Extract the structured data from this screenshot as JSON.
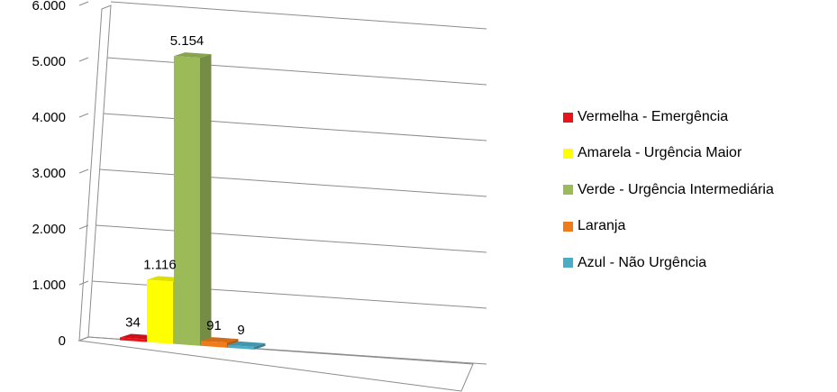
{
  "chart_data": {
    "type": "bar",
    "categories": [
      "Vermelha - Emergência",
      "Amarela - Urgência Maior",
      "Verde - Urgência Intermediária",
      "Laranja",
      "Azul - Não Urgência"
    ],
    "values": [
      34,
      1116,
      5154,
      91,
      9
    ],
    "data_labels": [
      "34",
      "1.116",
      "5.154",
      "91",
      "9"
    ],
    "colors": [
      "#e8141b",
      "#ffff00",
      "#9bbb59",
      "#f07b1a",
      "#4bacc6"
    ],
    "yticks": [
      "0",
      "1.000",
      "2.000",
      "3.000",
      "4.000",
      "5.000",
      "6.000"
    ],
    "ylim": [
      0,
      6000
    ],
    "grid": true,
    "legend_position": "right",
    "style": "3d-column",
    "title": "",
    "xlabel": "",
    "ylabel": ""
  }
}
